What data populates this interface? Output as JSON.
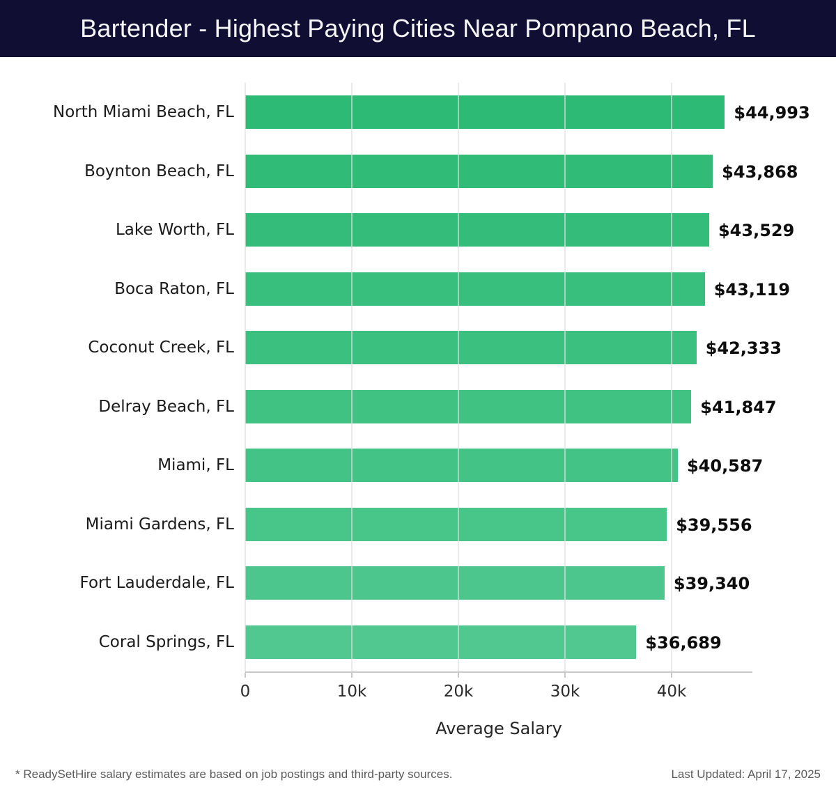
{
  "header": {
    "title": "Bartender - Highest Paying Cities Near Pompano Beach, FL"
  },
  "chart_data": {
    "type": "bar",
    "orientation": "horizontal",
    "title": "Bartender - Highest Paying Cities Near Pompano Beach, FL",
    "xlabel": "Average Salary",
    "ylabel": "",
    "categories": [
      "North Miami Beach, FL",
      "Boynton Beach, FL",
      "Lake Worth, FL",
      "Boca Raton, FL",
      "Coconut Creek, FL",
      "Delray Beach, FL",
      "Miami, FL",
      "Miami Gardens, FL",
      "Fort Lauderdale, FL",
      "Coral Springs, FL"
    ],
    "values": [
      44993,
      43868,
      43529,
      43119,
      42333,
      41847,
      40587,
      39556,
      39340,
      36689
    ],
    "value_labels": [
      "$44,993",
      "$43,868",
      "$43,529",
      "$43,119",
      "$42,333",
      "$41,847",
      "$40,587",
      "$39,556",
      "$39,340",
      "$36,689"
    ],
    "bar_colors": [
      "#2cba74",
      "#30bc77",
      "#34bd7a",
      "#38bf7d",
      "#3cc080",
      "#40c283",
      "#44c386",
      "#48c589",
      "#4cc68c",
      "#50c88f"
    ],
    "x_ticks": [
      {
        "label": "0",
        "value": 0
      },
      {
        "label": "10k",
        "value": 10000
      },
      {
        "label": "20k",
        "value": 20000
      },
      {
        "label": "30k",
        "value": 30000
      },
      {
        "label": "40k",
        "value": 40000
      }
    ],
    "xlim": [
      0,
      47582
    ],
    "grid": true,
    "legend": false,
    "colors": {
      "header_background": "#100e33",
      "title_text": "#f5f5f7",
      "gridline": "#e3e3e3",
      "axis_line": "#c9c9c9",
      "label_text": "#1a1a1a",
      "value_text": "#0d0d0d"
    }
  },
  "footer": {
    "source_note": "* ReadySetHire salary estimates are based on job postings and third-party sources.",
    "last_updated": "Last Updated: April 17, 2025"
  }
}
